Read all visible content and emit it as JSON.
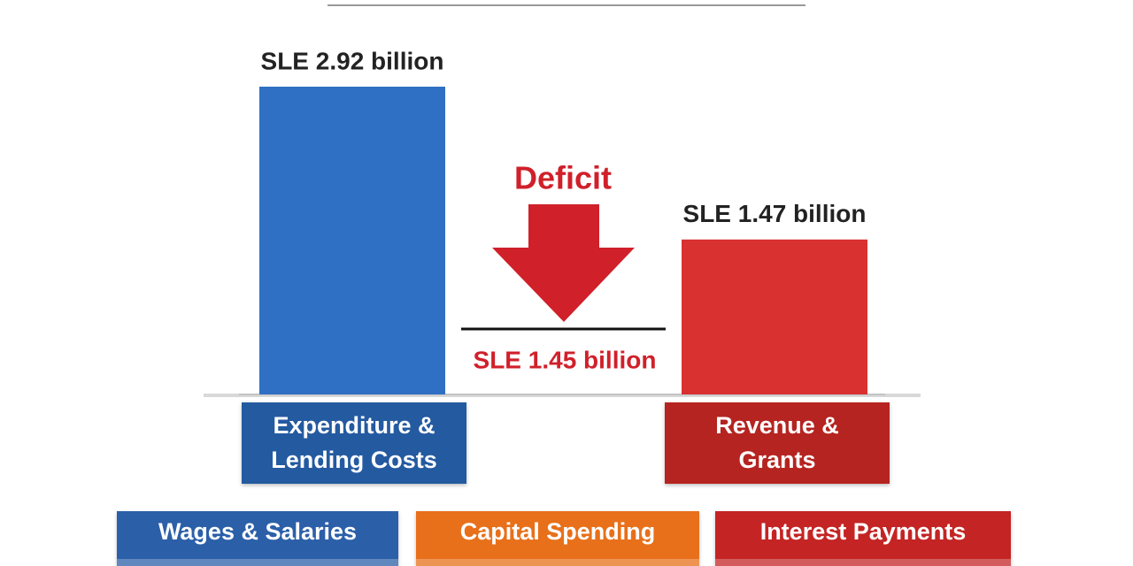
{
  "chart_data": {
    "type": "bar",
    "categories": [
      "Expenditure & Lending Costs",
      "Revenue & Grants"
    ],
    "values": [
      2.92,
      1.47
    ],
    "value_labels": [
      "SLE 2.92 billion",
      "SLE 1.47 billion"
    ],
    "colors": [
      "#2f6fc4",
      "#d93030"
    ],
    "label_colors": [
      "#245aa0",
      "#b52420"
    ],
    "deficit": {
      "label": "Deficit",
      "value": 1.45,
      "value_label": "SLE 1.45 billion",
      "color": "#d0202a"
    },
    "items": [
      {
        "label": "Wages & Salaries",
        "color": "#2b5fa8"
      },
      {
        "label": "Capital Spending",
        "color": "#e8701a"
      },
      {
        "label": "Interest Payments",
        "color": "#c42424"
      }
    ]
  }
}
